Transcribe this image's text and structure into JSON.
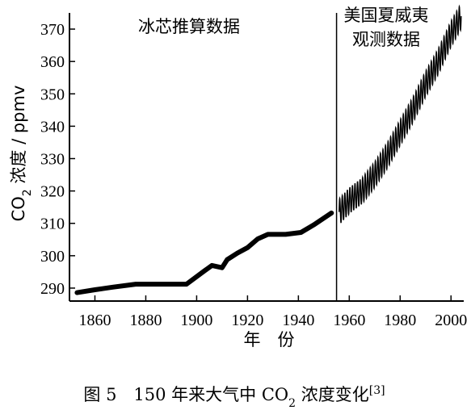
{
  "chart_data": {
    "type": "line",
    "title": "",
    "xlabel": "年　份",
    "ylabel": {
      "prefix": "CO",
      "sub": "2",
      "suffix": " 浓度 / ppmv"
    },
    "xlim": [
      1850,
      2005
    ],
    "ylim": [
      286,
      375
    ],
    "x_ticks": [
      1860,
      1880,
      1900,
      1920,
      1940,
      1960,
      1980,
      2000
    ],
    "y_ticks": [
      290,
      300,
      310,
      320,
      330,
      340,
      350,
      360,
      370
    ],
    "divider_x": 1955,
    "annotations": [
      {
        "lines": [
          "冰芯推算数据"
        ]
      },
      {
        "lines": [
          "美国夏威夷",
          "观测数据"
        ]
      }
    ],
    "series": [
      {
        "x": [
          1853,
          1860,
          1867,
          1876,
          1880,
          1890,
          1896,
          1903,
          1906,
          1910,
          1912,
          1916,
          1920,
          1924,
          1928,
          1935,
          1941,
          1946,
          1953
        ],
        "y": [
          288.6,
          289.5,
          290.3,
          291.2,
          291.2,
          291.2,
          291.2,
          295.3,
          297.0,
          296.3,
          298.8,
          300.8,
          302.5,
          305.2,
          306.6,
          306.6,
          307.2,
          309.5,
          313.2
        ]
      },
      {
        "x": [
          1956,
          1960,
          1965,
          1970,
          1975,
          1980,
          1985,
          1990,
          1995,
          2000,
          2004
        ],
        "y": [
          313.5,
          317.0,
          320.0,
          325.0,
          331.0,
          338.0,
          345.0,
          353.0,
          360.0,
          368.5,
          374.0
        ],
        "seasonal_amplitude_ppmv": 4
      }
    ]
  },
  "caption": {
    "prefix": "图 5　150 年来大气中 CO",
    "sub": "2",
    "suffix": " 浓度变化",
    "ref": "[3]"
  }
}
